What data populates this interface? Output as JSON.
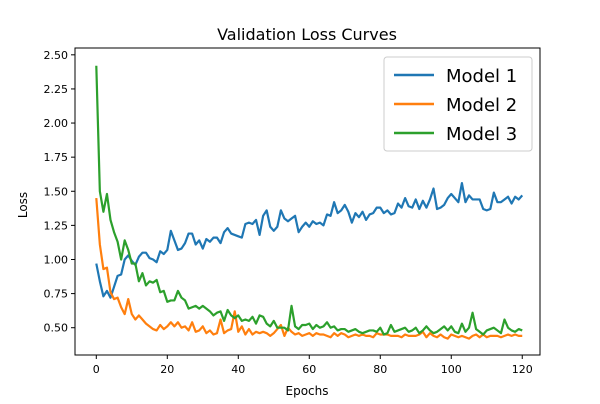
{
  "chart_data": {
    "type": "line",
    "title": "Validation Loss Curves",
    "xlabel": "Epochs",
    "ylabel": "Loss",
    "xlim": [
      -6,
      125
    ],
    "ylim": [
      0.3,
      2.55
    ],
    "xticks": [
      0,
      20,
      40,
      60,
      80,
      100,
      120
    ],
    "yticks": [
      0.5,
      0.75,
      1.0,
      1.25,
      1.5,
      1.75,
      2.0,
      2.25,
      2.5
    ],
    "ytick_labels": [
      "0.50",
      "0.75",
      "1.00",
      "1.25",
      "1.50",
      "1.75",
      "2.00",
      "2.25",
      "2.50"
    ],
    "legend_position": "top-right",
    "grid": false,
    "series": [
      {
        "name": "Model 1",
        "color": "#1f77b4",
        "values": [
          0.97,
          0.84,
          0.73,
          0.77,
          0.72,
          0.8,
          0.88,
          0.89,
          1.0,
          1.03,
          0.99,
          0.96,
          1.02,
          1.05,
          1.05,
          1.01,
          1.0,
          0.98,
          1.06,
          1.04,
          1.07,
          1.21,
          1.14,
          1.07,
          1.08,
          1.12,
          1.19,
          1.19,
          1.11,
          1.14,
          1.08,
          1.15,
          1.13,
          1.16,
          1.16,
          1.12,
          1.2,
          1.23,
          1.19,
          1.18,
          1.17,
          1.16,
          1.26,
          1.27,
          1.26,
          1.29,
          1.18,
          1.32,
          1.36,
          1.24,
          1.21,
          1.24,
          1.36,
          1.3,
          1.28,
          1.3,
          1.32,
          1.2,
          1.24,
          1.27,
          1.24,
          1.28,
          1.26,
          1.27,
          1.25,
          1.33,
          1.32,
          1.42,
          1.34,
          1.36,
          1.4,
          1.35,
          1.27,
          1.34,
          1.31,
          1.35,
          1.29,
          1.33,
          1.34,
          1.38,
          1.38,
          1.34,
          1.36,
          1.33,
          1.34,
          1.41,
          1.38,
          1.45,
          1.39,
          1.38,
          1.44,
          1.37,
          1.43,
          1.38,
          1.44,
          1.52,
          1.37,
          1.38,
          1.4,
          1.45,
          1.48,
          1.45,
          1.42,
          1.56,
          1.42,
          1.47,
          1.44,
          1.44,
          1.44,
          1.37,
          1.36,
          1.37,
          1.49,
          1.42,
          1.42,
          1.44,
          1.46,
          1.41,
          1.46,
          1.44,
          1.47
        ]
      },
      {
        "name": "Model 2",
        "color": "#ff7f0e",
        "values": [
          1.45,
          1.11,
          0.93,
          0.94,
          0.76,
          0.71,
          0.72,
          0.65,
          0.6,
          0.71,
          0.6,
          0.56,
          0.59,
          0.56,
          0.53,
          0.51,
          0.49,
          0.48,
          0.52,
          0.49,
          0.51,
          0.54,
          0.51,
          0.54,
          0.5,
          0.51,
          0.48,
          0.54,
          0.47,
          0.48,
          0.51,
          0.46,
          0.48,
          0.45,
          0.46,
          0.56,
          0.46,
          0.48,
          0.49,
          0.62,
          0.47,
          0.51,
          0.45,
          0.49,
          0.45,
          0.47,
          0.46,
          0.47,
          0.46,
          0.44,
          0.46,
          0.49,
          0.52,
          0.44,
          0.5,
          0.47,
          0.45,
          0.46,
          0.44,
          0.45,
          0.46,
          0.44,
          0.46,
          0.45,
          0.45,
          0.44,
          0.43,
          0.46,
          0.44,
          0.46,
          0.45,
          0.43,
          0.44,
          0.45,
          0.44,
          0.45,
          0.44,
          0.44,
          0.43,
          0.46,
          0.45,
          0.45,
          0.45,
          0.44,
          0.44,
          0.44,
          0.43,
          0.45,
          0.44,
          0.44,
          0.44,
          0.45,
          0.47,
          0.43,
          0.46,
          0.44,
          0.43,
          0.45,
          0.43,
          0.42,
          0.45,
          0.44,
          0.43,
          0.44,
          0.43,
          0.42,
          0.44,
          0.45,
          0.43,
          0.45,
          0.43,
          0.44,
          0.44,
          0.44,
          0.43,
          0.44,
          0.45,
          0.44,
          0.45,
          0.44,
          0.44
        ]
      },
      {
        "name": "Model 3",
        "color": "#2ca02c",
        "values": [
          2.42,
          1.5,
          1.35,
          1.48,
          1.29,
          1.2,
          1.13,
          1.0,
          1.14,
          1.07,
          0.97,
          0.97,
          0.84,
          0.9,
          0.81,
          0.84,
          0.83,
          0.85,
          0.76,
          0.77,
          0.69,
          0.7,
          0.7,
          0.77,
          0.72,
          0.7,
          0.64,
          0.65,
          0.66,
          0.64,
          0.66,
          0.64,
          0.62,
          0.59,
          0.61,
          0.62,
          0.55,
          0.63,
          0.59,
          0.57,
          0.59,
          0.55,
          0.56,
          0.55,
          0.58,
          0.53,
          0.59,
          0.58,
          0.53,
          0.51,
          0.55,
          0.5,
          0.5,
          0.5,
          0.48,
          0.66,
          0.51,
          0.49,
          0.52,
          0.52,
          0.53,
          0.49,
          0.52,
          0.5,
          0.51,
          0.54,
          0.5,
          0.51,
          0.48,
          0.49,
          0.49,
          0.47,
          0.48,
          0.49,
          0.47,
          0.46,
          0.47,
          0.48,
          0.48,
          0.47,
          0.5,
          0.45,
          0.46,
          0.52,
          0.47,
          0.48,
          0.49,
          0.5,
          0.47,
          0.48,
          0.5,
          0.46,
          0.48,
          0.51,
          0.48,
          0.46,
          0.47,
          0.49,
          0.51,
          0.48,
          0.51,
          0.47,
          0.46,
          0.53,
          0.47,
          0.5,
          0.61,
          0.49,
          0.47,
          0.45,
          0.48,
          0.49,
          0.5,
          0.48,
          0.46,
          0.56,
          0.5,
          0.48,
          0.47,
          0.49,
          0.48
        ]
      }
    ]
  }
}
